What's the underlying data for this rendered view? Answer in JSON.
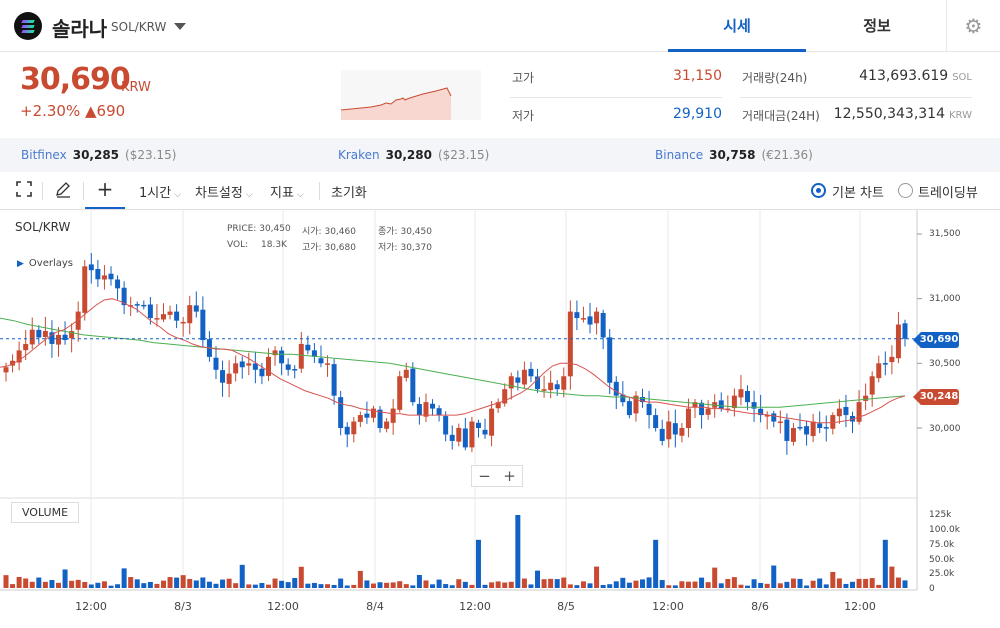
{
  "coin": {
    "name": "솔라나",
    "pair": "SOL/KRW"
  },
  "tabs": [
    {
      "label": "시세"
    },
    {
      "label": "정보"
    }
  ],
  "price": {
    "current": "30,690",
    "unit": "KRW",
    "change_pct": "+2.30%",
    "change_abs": "▲690"
  },
  "stats": {
    "high_label": "고가",
    "high": "31,150",
    "low_label": "저가",
    "low": "29,910",
    "vol_label": "거래량(24h)",
    "vol": "413,693.619",
    "vol_unit": "SOL",
    "amt_label": "거래대금(24H)",
    "amt": "12,550,343,314",
    "amt_unit": "KRW"
  },
  "exchanges": [
    {
      "name": "Bitfinex",
      "price": "30,285",
      "sub": "($23.15)"
    },
    {
      "name": "Kraken",
      "price": "30,280",
      "sub": "($23.15)"
    },
    {
      "name": "Binance",
      "price": "30,758",
      "sub": "(€21.36)"
    }
  ],
  "toolbar": {
    "interval": "1시간",
    "chart_settings": "차트설정",
    "indicators": "지표",
    "reset": "초기화",
    "basic_chart": "기본 차트",
    "trading_view": "트레이딩뷰"
  },
  "legend": {
    "symbol": "SOL/KRW",
    "overlays": "Overlays"
  },
  "ohlc": {
    "price_label": "PRICE:",
    "price": "30,450",
    "open_label": "시가:",
    "open": "30,460",
    "close_label": "종가:",
    "close": "30,450",
    "vol_label": "VOL:",
    "vol": "18.3K",
    "high_label": "고가:",
    "high": "30,680",
    "low_label": "저가:",
    "low": "30,370"
  },
  "volume_label": "VOLUME",
  "zoom": {
    "out": "−",
    "in": "+"
  },
  "badges": {
    "last": "30,690",
    "ma": "30,248"
  },
  "colors": {
    "up": "#c84a31",
    "down": "#1261c4",
    "ma_short": "#d9534f",
    "ma_long": "#4caf50"
  },
  "chart_data": {
    "type": "candlestick",
    "y_ticks": [
      "31,500",
      "31,000",
      "30,500",
      "30,000"
    ],
    "y_values": [
      31500,
      31000,
      30500,
      30000
    ],
    "vol_ticks": [
      "125k",
      "100.0k",
      "75.0k",
      "50.0k",
      "25.0k",
      "0"
    ],
    "vol_values": [
      125000,
      100000,
      75000,
      50000,
      25000,
      0
    ],
    "x_ticks": [
      "12:00",
      "8/3",
      "12:00",
      "8/4",
      "12:00",
      "8/5",
      "12:00",
      "8/6",
      "12:00"
    ],
    "closes": [
      30470,
      30520,
      30600,
      30650,
      30760,
      30700,
      30750,
      30650,
      30720,
      30680,
      30750,
      30900,
      31250,
      31220,
      31150,
      31180,
      31150,
      31080,
      30950,
      30950,
      30950,
      30950,
      30850,
      30850,
      30880,
      30900,
      30830,
      30820,
      30950,
      30900,
      30680,
      30550,
      30450,
      30350,
      30420,
      30500,
      30470,
      30500,
      30450,
      30400,
      30550,
      30600,
      30500,
      30450,
      30450,
      30650,
      30600,
      30550,
      30500,
      30500,
      30250,
      30000,
      29950,
      30050,
      30100,
      30080,
      30150,
      30000,
      30050,
      30150,
      30400,
      30450,
      30200,
      30100,
      30200,
      30150,
      30100,
      29950,
      29900,
      30000,
      29850,
      30050,
      30000,
      29950,
      30150,
      30200,
      30300,
      30400,
      30350,
      30450,
      30400,
      30300,
      30300,
      30350,
      30300,
      30400,
      30900,
      30850,
      30850,
      30800,
      30900,
      30700,
      30350,
      30250,
      30200,
      30100,
      30250,
      30200,
      30100,
      30000,
      29900,
      30050,
      29950,
      30000,
      30150,
      30200,
      30100,
      30150,
      30200,
      30150,
      30150,
      30250,
      30300,
      30200,
      30150,
      30100,
      30100,
      30050,
      30050,
      29900,
      30000,
      30000,
      29950,
      30050,
      30000,
      30000,
      30100,
      30150,
      30100,
      30050,
      30200,
      30250,
      30400,
      30500,
      30500,
      30550,
      30800,
      30690
    ],
    "ma_short": [
      30470,
      30480,
      30510,
      30550,
      30600,
      30650,
      30700,
      30740,
      30760,
      30800,
      30850,
      30900,
      30950,
      30990,
      31000,
      30980,
      30950,
      30920,
      30870,
      30820,
      30780,
      30730,
      30700,
      30680,
      30650,
      30630,
      30620,
      30610,
      30610,
      30600,
      30570,
      30540,
      30500,
      30460,
      30420,
      30380,
      30350,
      30320,
      30290,
      30270,
      30250,
      30230,
      30200,
      30180,
      30170,
      30150,
      30140,
      30130,
      30120,
      30110,
      30110,
      30100,
      30100,
      30100,
      30100,
      30100,
      30100,
      30100,
      30110,
      30130,
      30150,
      30170,
      30190,
      30210,
      30240,
      30270,
      30310,
      30370,
      30430,
      30480,
      30500,
      30500,
      30490,
      30460,
      30420,
      30370,
      30320,
      30280,
      30250,
      30230,
      30210,
      30200,
      30200,
      30190,
      30180,
      30170,
      30160,
      30160,
      30160,
      30150,
      30150,
      30140,
      30130,
      30120,
      30110,
      30110,
      30100,
      30090,
      30080,
      30070,
      30060,
      30050,
      30040,
      30040,
      30040,
      30050,
      30060,
      30080,
      30100,
      30130,
      30160,
      30200,
      30230,
      30248
    ],
    "ma_long": [
      30850,
      30830,
      30800,
      30780,
      30760,
      30740,
      30720,
      30710,
      30700,
      30690,
      30680,
      30660,
      30650,
      30640,
      30630,
      30620,
      30610,
      30600,
      30590,
      30580,
      30570,
      30570,
      30560,
      30550,
      30540,
      30530,
      30520,
      30510,
      30500,
      30480,
      30460,
      30440,
      30420,
      30400,
      30380,
      30360,
      30340,
      30320,
      30300,
      30280,
      30270,
      30260,
      30250,
      30250,
      30240,
      30240,
      30230,
      30220,
      30210,
      30200,
      30190,
      30180,
      30170,
      30160,
      30160,
      30160,
      30160,
      30170,
      30180,
      30190,
      30200,
      30210,
      30220,
      30230,
      30240,
      30248
    ]
  }
}
